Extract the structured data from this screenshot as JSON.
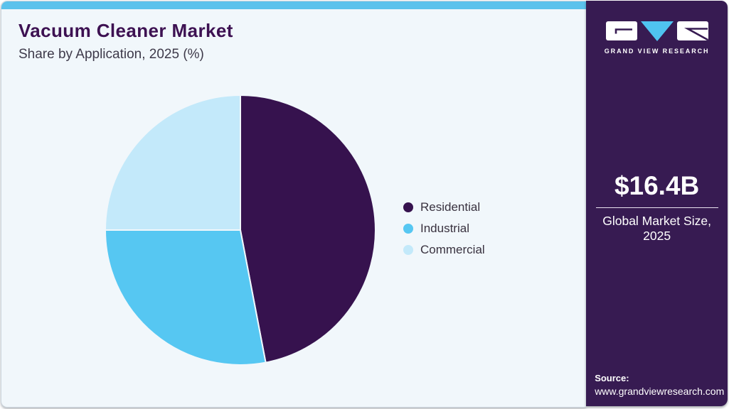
{
  "header": {
    "title": "Vacuum Cleaner Market",
    "subtitle": "Share by Application, 2025 (%)"
  },
  "chart_data": {
    "type": "pie",
    "title": "Vacuum Cleaner Market Share by Application, 2025 (%)",
    "labels": [
      "Residential",
      "Industrial",
      "Commercial"
    ],
    "values": [
      47,
      28,
      25
    ],
    "unit": "%",
    "colors": [
      "#36124E",
      "#56C7F2",
      "#C3E9FA"
    ],
    "start_angle_deg": 0,
    "direction": "clockwise",
    "legend_position": "right",
    "data_labels_shown": false
  },
  "sidebar": {
    "brand_name": "GRAND VIEW RESEARCH",
    "market_size_value": "$16.4B",
    "market_size_label": "Global Market Size, 2025",
    "source_label": "Source:",
    "source_url": "www.grandviewresearch.com"
  },
  "colors": {
    "accent_bar": "#5BC2EC",
    "panel_bg": "#F1F7FB",
    "sidebar_bg": "#371B52",
    "title_text": "#3D1152",
    "subtitle_text": "#3E3A4A",
    "legend_text": "#39323F",
    "logo_triangle": "#4FC3F0"
  }
}
